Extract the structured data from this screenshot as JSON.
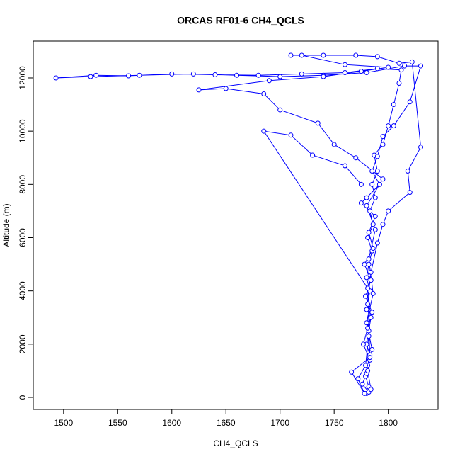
{
  "chart_data": {
    "type": "line",
    "title": "ORCAS RF01-6 CH4_QCLS",
    "xlabel": "CH4_QCLS",
    "ylabel": "Altitude (m)",
    "x": [
      1780,
      1782,
      1779,
      1781,
      1783,
      1780,
      1782,
      1784,
      1781,
      1783,
      1780,
      1782,
      1785,
      1781,
      1786,
      1783,
      1788,
      1785,
      1790,
      1787,
      1795,
      1800,
      1805,
      1810,
      1812,
      1790,
      1760,
      1720,
      1680,
      1640,
      1600,
      1560,
      1530,
      1493,
      1525,
      1570,
      1620,
      1660,
      1700,
      1740,
      1780,
      1815,
      1830,
      1820,
      1805,
      1795,
      1790,
      1785,
      1792,
      1780,
      1775,
      1788,
      1782,
      1786,
      1778,
      1784,
      1779,
      1785,
      1781,
      1777,
      1783,
      1780,
      1776,
      1782,
      1784,
      1781,
      1785,
      1780,
      1786,
      1782,
      1788,
      1780,
      1795,
      1770,
      1750,
      1735,
      1700,
      1685,
      1650,
      1625,
      1690,
      1740,
      1775,
      1800,
      1760,
      1720,
      1710,
      1740,
      1770,
      1790,
      1810,
      1822,
      1830,
      1818,
      1820,
      1800,
      1795,
      1790,
      1784,
      1780,
      1782,
      1779,
      1772,
      1778,
      1766,
      1783,
      1781,
      1685,
      1710,
      1730,
      1760,
      1775
    ],
    "series": [
      {
        "name": "CH4_QCLS",
        "color": "#0000ff",
        "values": [
          150,
          400,
          800,
          1200,
          1600,
          2000,
          2500,
          3000,
          3500,
          4000,
          4500,
          5000,
          5500,
          6000,
          6500,
          7000,
          7500,
          8000,
          8500,
          9100,
          9500,
          10200,
          11000,
          11800,
          12300,
          12350,
          12200,
          12150,
          12100,
          12120,
          12150,
          12080,
          12100,
          12000,
          12050,
          12100,
          12150,
          12100,
          12050,
          12100,
          12200,
          12450,
          12450,
          11100,
          10200,
          9800,
          9050,
          8500,
          8000,
          7500,
          7300,
          6800,
          6200,
          5600,
          5000,
          4400,
          3800,
          3200,
          2600,
          2000,
          1400,
          900,
          500,
          200,
          300,
          1000,
          1800,
          2800,
          3900,
          5200,
          6300,
          7200,
          8200,
          9000,
          9500,
          10300,
          10800,
          11400,
          11600,
          11550,
          11900,
          12050,
          12250,
          12400,
          12500,
          12850,
          12850,
          12850,
          12850,
          12800,
          12550,
          12600,
          9400,
          8500,
          7700,
          7000,
          6500,
          5800,
          4700,
          3300,
          2300,
          1200,
          700,
          150,
          950,
          1500,
          4100,
          10000,
          9850,
          9100,
          8700,
          8000
        ]
      }
    ],
    "xlim": [
      1472,
      1846
    ],
    "ylim": [
      -452,
      13383
    ],
    "xticks": [
      1500,
      1550,
      1600,
      1650,
      1700,
      1750,
      1800
    ],
    "yticks": [
      0,
      2000,
      4000,
      6000,
      8000,
      10000,
      12000
    ]
  }
}
